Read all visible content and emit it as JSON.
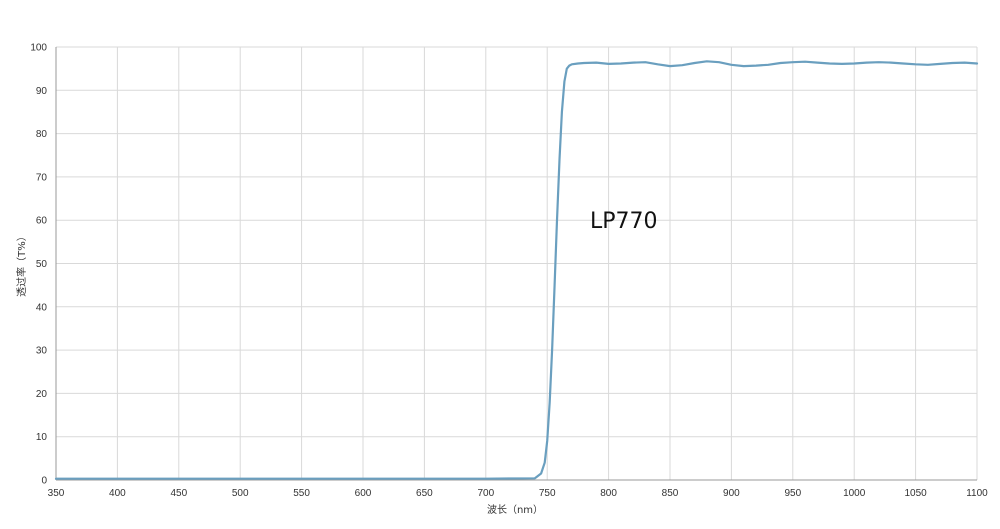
{
  "chart_data": {
    "type": "line",
    "title": "",
    "xlabel": "波长（nm）",
    "ylabel": "透过率（T%）",
    "xlim": [
      350,
      1100
    ],
    "ylim": [
      0,
      100
    ],
    "xticks": [
      350,
      400,
      450,
      500,
      550,
      600,
      650,
      700,
      750,
      800,
      850,
      900,
      950,
      1000,
      1050,
      1100
    ],
    "yticks": [
      0,
      10,
      20,
      30,
      40,
      50,
      60,
      70,
      80,
      90,
      100
    ],
    "grid": true,
    "annotation": "LP770",
    "line_color": "#6a9fbf",
    "series": [
      {
        "x": [
          350,
          400,
          450,
          500,
          550,
          600,
          650,
          700,
          740,
          745,
          748,
          750,
          752,
          754,
          756,
          758,
          760,
          762,
          764,
          766,
          768,
          770,
          775,
          780,
          790,
          800,
          810,
          820,
          830,
          840,
          850,
          860,
          870,
          880,
          890,
          900,
          910,
          920,
          930,
          940,
          950,
          960,
          970,
          980,
          990,
          1000,
          1010,
          1020,
          1030,
          1040,
          1050,
          1060,
          1070,
          1080,
          1090,
          1100
        ],
        "y": [
          0.3,
          0.3,
          0.3,
          0.3,
          0.3,
          0.3,
          0.3,
          0.3,
          0.4,
          1.5,
          4,
          9,
          18,
          30,
          45,
          60,
          74,
          85,
          92,
          95,
          95.7,
          96,
          96.2,
          96.3,
          96.4,
          96.1,
          96.2,
          96.4,
          96.5,
          96.0,
          95.6,
          95.8,
          96.3,
          96.7,
          96.5,
          95.9,
          95.6,
          95.7,
          95.9,
          96.3,
          96.5,
          96.6,
          96.4,
          96.2,
          96.1,
          96.2,
          96.4,
          96.5,
          96.4,
          96.2,
          96.0,
          95.9,
          96.1,
          96.3,
          96.4,
          96.2
        ]
      }
    ]
  }
}
